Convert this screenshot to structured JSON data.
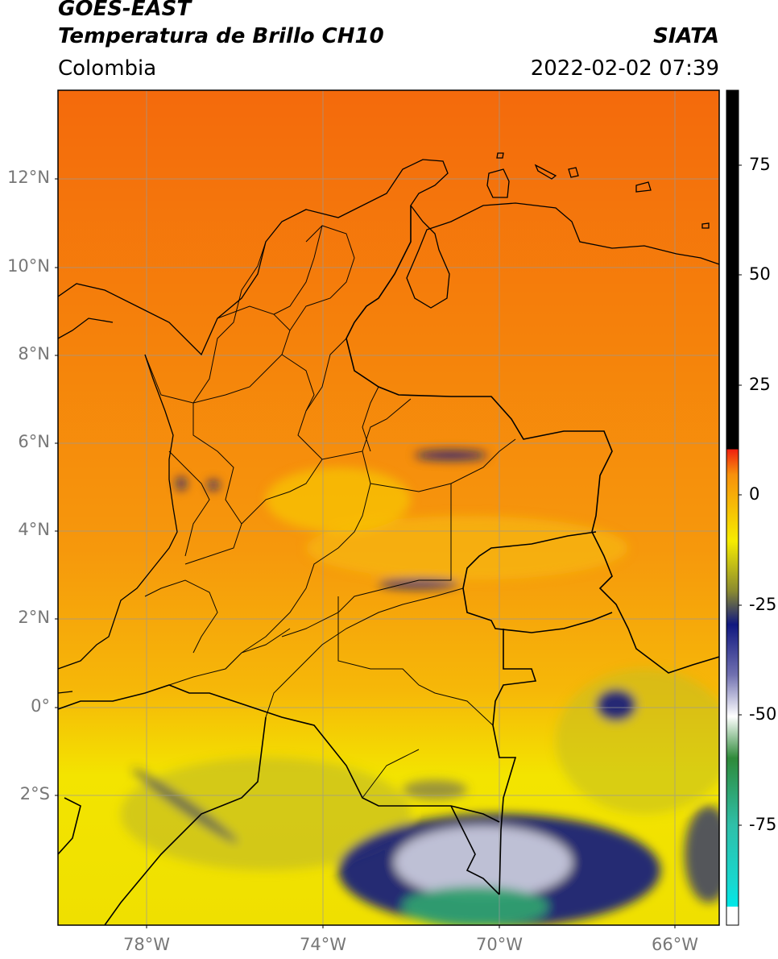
{
  "header": {
    "satellite": "GOES-EAST",
    "product": "Temperatura de Brillo CH10",
    "source": "SIATA",
    "region": "Colombia",
    "datetime": "2022-02-02 07:39"
  },
  "map": {
    "lon_range": [
      -80,
      -65
    ],
    "lat_range": [
      -5,
      14
    ],
    "lat_ticks": [
      "12°N",
      "10°N",
      "8°N",
      "6°N",
      "4°N",
      "2°N",
      "0°",
      "2°S"
    ],
    "lon_ticks": [
      "78°W",
      "74°W",
      "70°W",
      "66°W"
    ],
    "features": [
      "country-boundaries",
      "department-boundaries",
      "coastlines",
      "graticule"
    ]
  },
  "colorbar": {
    "ticks": [
      "75",
      "50",
      "25",
      "0",
      "-25",
      "-50",
      "-75"
    ],
    "range": [
      -95,
      90
    ],
    "colors": {
      "black": "#000000",
      "red": "#f02010",
      "orange": "#f7900c",
      "yellow": "#f6ec00",
      "olive": "#8a8a30",
      "navy": "#101880",
      "white": "#ffffff",
      "green": "#2f8a3a",
      "teal": "#2fbfa8",
      "cyan": "#00e8e8"
    }
  }
}
